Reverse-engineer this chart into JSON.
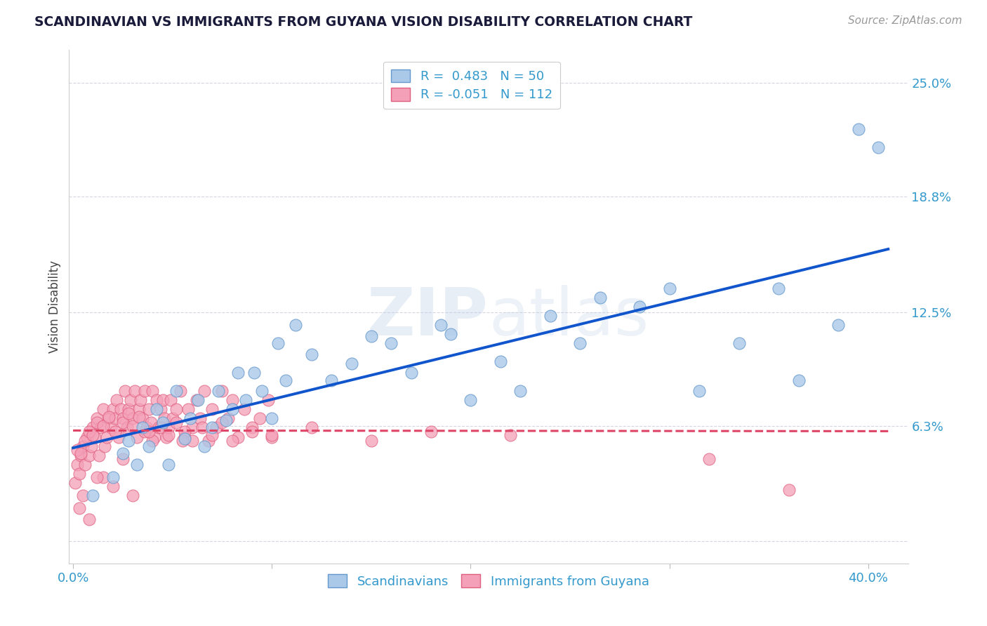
{
  "title": "SCANDINAVIAN VS IMMIGRANTS FROM GUYANA VISION DISABILITY CORRELATION CHART",
  "source": "Source: ZipAtlas.com",
  "ylabel": "Vision Disability",
  "yticks": [
    0.0,
    0.063,
    0.125,
    0.188,
    0.25
  ],
  "ytick_labels": [
    "",
    "6.3%",
    "12.5%",
    "18.8%",
    "25.0%"
  ],
  "xticks": [
    0.0,
    0.1,
    0.2,
    0.3,
    0.4
  ],
  "xlim": [
    -0.002,
    0.42
  ],
  "ylim": [
    -0.012,
    0.268
  ],
  "watermark": "ZIPatlas",
  "series1_name": "Scandinavians",
  "series2_name": "Immigrants from Guyana",
  "series1_color": "#aac8e8",
  "series2_color": "#f4a0b8",
  "series1_edge": "#6699cc",
  "series2_edge": "#e06080",
  "trend1_color": "#1155cc",
  "trend2_color": "#dd4466",
  "title_color": "#1a1a3a",
  "axis_label_color": "#3399cc",
  "grid_color": "#ccccdd",
  "background_color": "#ffffff",
  "r1": 0.483,
  "n1": 50,
  "r2": -0.051,
  "n2": 112,
  "scandinavians_x": [
    0.01,
    0.02,
    0.025,
    0.028,
    0.032,
    0.035,
    0.038,
    0.042,
    0.045,
    0.048,
    0.052,
    0.056,
    0.059,
    0.063,
    0.066,
    0.07,
    0.073,
    0.077,
    0.08,
    0.083,
    0.087,
    0.091,
    0.095,
    0.1,
    0.103,
    0.107,
    0.112,
    0.12,
    0.13,
    0.14,
    0.15,
    0.16,
    0.17,
    0.185,
    0.19,
    0.2,
    0.215,
    0.225,
    0.24,
    0.255,
    0.265,
    0.285,
    0.3,
    0.315,
    0.335,
    0.355,
    0.365,
    0.385,
    0.395,
    0.405
  ],
  "scandinavians_y": [
    0.025,
    0.035,
    0.048,
    0.055,
    0.042,
    0.062,
    0.052,
    0.072,
    0.065,
    0.042,
    0.082,
    0.056,
    0.067,
    0.077,
    0.052,
    0.062,
    0.082,
    0.066,
    0.072,
    0.092,
    0.077,
    0.092,
    0.082,
    0.067,
    0.108,
    0.088,
    0.118,
    0.102,
    0.088,
    0.097,
    0.112,
    0.108,
    0.092,
    0.118,
    0.113,
    0.077,
    0.098,
    0.082,
    0.123,
    0.108,
    0.133,
    0.128,
    0.138,
    0.082,
    0.108,
    0.138,
    0.088,
    0.118,
    0.225,
    0.215
  ],
  "guyana_x": [
    0.001,
    0.002,
    0.003,
    0.004,
    0.005,
    0.006,
    0.007,
    0.008,
    0.009,
    0.01,
    0.011,
    0.012,
    0.013,
    0.014,
    0.015,
    0.016,
    0.017,
    0.018,
    0.019,
    0.02,
    0.021,
    0.022,
    0.023,
    0.024,
    0.025,
    0.026,
    0.027,
    0.028,
    0.029,
    0.03,
    0.031,
    0.032,
    0.033,
    0.034,
    0.035,
    0.036,
    0.037,
    0.038,
    0.039,
    0.04,
    0.041,
    0.042,
    0.043,
    0.044,
    0.045,
    0.046,
    0.047,
    0.048,
    0.049,
    0.05,
    0.052,
    0.054,
    0.056,
    0.058,
    0.06,
    0.062,
    0.064,
    0.066,
    0.068,
    0.07,
    0.072,
    0.075,
    0.078,
    0.08,
    0.083,
    0.086,
    0.09,
    0.094,
    0.098,
    0.1,
    0.002,
    0.004,
    0.006,
    0.008,
    0.01,
    0.012,
    0.015,
    0.018,
    0.021,
    0.025,
    0.028,
    0.03,
    0.033,
    0.036,
    0.04,
    0.044,
    0.048,
    0.052,
    0.056,
    0.06,
    0.065,
    0.07,
    0.075,
    0.08,
    0.09,
    0.1,
    0.12,
    0.15,
    0.18,
    0.22,
    0.003,
    0.008,
    0.015,
    0.025,
    0.038,
    0.055,
    0.32,
    0.36,
    0.005,
    0.012,
    0.02,
    0.03
  ],
  "guyana_y": [
    0.032,
    0.042,
    0.037,
    0.047,
    0.052,
    0.042,
    0.057,
    0.047,
    0.052,
    0.062,
    0.057,
    0.067,
    0.047,
    0.062,
    0.072,
    0.052,
    0.057,
    0.067,
    0.062,
    0.072,
    0.067,
    0.077,
    0.057,
    0.072,
    0.067,
    0.082,
    0.062,
    0.072,
    0.077,
    0.067,
    0.082,
    0.057,
    0.072,
    0.077,
    0.067,
    0.082,
    0.062,
    0.072,
    0.065,
    0.082,
    0.057,
    0.077,
    0.062,
    0.072,
    0.077,
    0.067,
    0.057,
    0.062,
    0.077,
    0.067,
    0.072,
    0.082,
    0.057,
    0.072,
    0.062,
    0.077,
    0.067,
    0.082,
    0.055,
    0.072,
    0.062,
    0.082,
    0.067,
    0.077,
    0.057,
    0.072,
    0.062,
    0.067,
    0.077,
    0.057,
    0.05,
    0.048,
    0.055,
    0.06,
    0.058,
    0.065,
    0.063,
    0.068,
    0.06,
    0.065,
    0.07,
    0.063,
    0.068,
    0.06,
    0.055,
    0.062,
    0.058,
    0.065,
    0.06,
    0.055,
    0.062,
    0.058,
    0.065,
    0.055,
    0.06,
    0.058,
    0.062,
    0.055,
    0.06,
    0.058,
    0.018,
    0.012,
    0.035,
    0.045,
    0.06,
    0.055,
    0.045,
    0.028,
    0.025,
    0.035,
    0.03,
    0.025
  ]
}
